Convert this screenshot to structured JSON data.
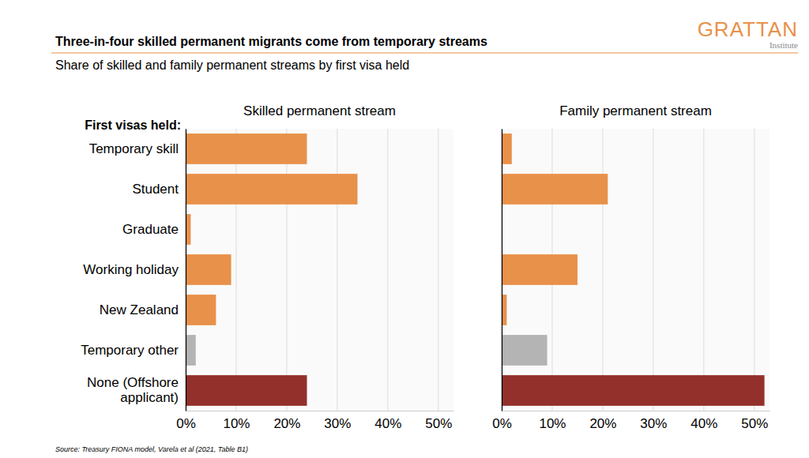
{
  "title": "Three-in-four skilled permanent migrants come from temporary streams",
  "subtitle": "Share of skilled and family permanent streams by first visa held",
  "source": "Source: Treasury FIONA model, Varela et al (2021, Table B1)",
  "brand": "GRATTAN",
  "brand_sub": "Institute",
  "chart_data": [
    {
      "type": "bar",
      "orientation": "horizontal",
      "title": "Skilled permanent stream",
      "ylabel": "First visas held:",
      "categories": [
        "Temporary skill",
        "Student",
        "Graduate",
        "Working holiday",
        "New Zealand",
        "Temporary other",
        "None (Offshore applicant)"
      ],
      "values": [
        24,
        34,
        1,
        9,
        6,
        2,
        24
      ],
      "colors": [
        "#e8914a",
        "#e8914a",
        "#e8914a",
        "#e8914a",
        "#e8914a",
        "#b4b4b4",
        "#93302c"
      ],
      "xlim": [
        0,
        53
      ],
      "xticks": [
        {
          "value": 0,
          "label": "0%"
        },
        {
          "value": 10,
          "label": "10%"
        },
        {
          "value": 20,
          "label": "20%"
        },
        {
          "value": 30,
          "label": "30%"
        },
        {
          "value": 40,
          "label": "40%"
        },
        {
          "value": 50,
          "label": "50%"
        }
      ],
      "grid": true
    },
    {
      "type": "bar",
      "orientation": "horizontal",
      "title": "Family permanent stream",
      "categories": [
        "Temporary skill",
        "Student",
        "Graduate",
        "Working holiday",
        "New Zealand",
        "Temporary other",
        "None (Offshore applicant)"
      ],
      "values": [
        2,
        21,
        0,
        15,
        1,
        9,
        52
      ],
      "colors": [
        "#e8914a",
        "#e8914a",
        "#e8914a",
        "#e8914a",
        "#e8914a",
        "#b4b4b4",
        "#93302c"
      ],
      "xlim": [
        0,
        53
      ],
      "xticks": [
        {
          "value": 0,
          "label": "0%"
        },
        {
          "value": 10,
          "label": "10%"
        },
        {
          "value": 20,
          "label": "20%"
        },
        {
          "value": 30,
          "label": "30%"
        },
        {
          "value": 40,
          "label": "40%"
        },
        {
          "value": 50,
          "label": "50%"
        }
      ],
      "grid": true,
      "tick_labels": "x"
    }
  ]
}
